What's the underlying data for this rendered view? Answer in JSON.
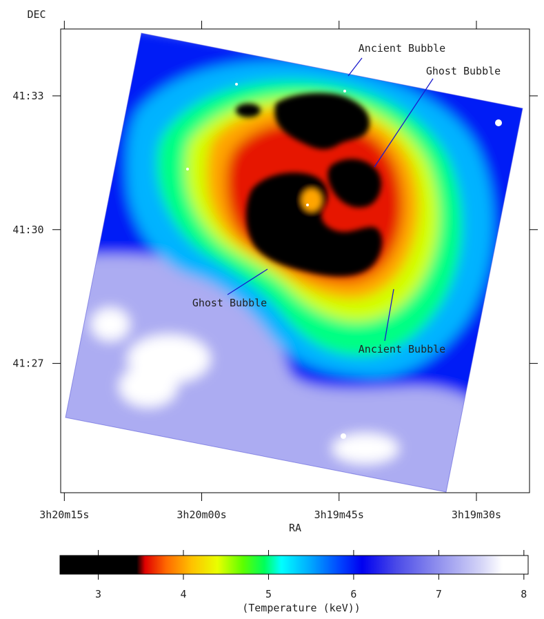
{
  "chart_data": [
    {
      "type": "heatmap",
      "title": "",
      "xlabel": "RA",
      "ylabel": "DEC",
      "x_ticks": [
        {
          "label": "3h20m15s",
          "seconds": 15
        },
        {
          "label": "3h20m00s",
          "seconds": 0
        },
        {
          "label": "3h19m45s",
          "seconds": -15
        },
        {
          "label": "3h19m30s",
          "seconds": -30
        }
      ],
      "xlim": [
        "3h20m15.4s",
        "3h19m24.2s"
      ],
      "y_ticks": [
        {
          "label": "41:33",
          "arcmin": 33
        },
        {
          "label": "41:30",
          "arcmin": 30
        },
        {
          "label": "41:27",
          "arcmin": 27
        }
      ],
      "ylim": [
        "41:24:06",
        "41:34:30"
      ],
      "map_rotation_deg": -5,
      "annotations": [
        {
          "text": "Ancient Bubble",
          "points_to": "outer cool shell, north"
        },
        {
          "text": "Ghost Bubble",
          "points_to": "inner cavity, north-west arc"
        },
        {
          "text": "Ghost Bubble",
          "points_to": "inner cavity, south-east edge"
        },
        {
          "text": "Ancient Bubble",
          "points_to": "outer cool shell, south"
        }
      ],
      "temperature_regions": [
        {
          "region": "core",
          "keV": 3.0
        },
        {
          "region": "inner shell",
          "keV": 4.0
        },
        {
          "region": "middle ring",
          "keV": 5.0
        },
        {
          "region": "outer envelope",
          "keV": 6.0
        },
        {
          "region": "south-east edge",
          "keV": 7.2
        },
        {
          "region": "south-east hot spots",
          "keV": 8.0
        }
      ]
    },
    {
      "type": "colorbar",
      "xlabel": "(Temperature (keV))",
      "range": [
        2.55,
        8.05
      ],
      "ticks": [
        3,
        4,
        5,
        6,
        7,
        8
      ],
      "colormap": [
        {
          "value": 2.55,
          "color": "#000000"
        },
        {
          "value": 3.45,
          "color": "#000000"
        },
        {
          "value": 3.55,
          "color": "#e00000"
        },
        {
          "value": 3.8,
          "color": "#ff6a00"
        },
        {
          "value": 4.1,
          "color": "#ffc200"
        },
        {
          "value": 4.4,
          "color": "#e9ff00"
        },
        {
          "value": 4.7,
          "color": "#5cff00"
        },
        {
          "value": 4.95,
          "color": "#00ff5a"
        },
        {
          "value": 5.15,
          "color": "#00ffff"
        },
        {
          "value": 5.5,
          "color": "#00a6ff"
        },
        {
          "value": 5.85,
          "color": "#0041ff"
        },
        {
          "value": 6.1,
          "color": "#0000f0"
        },
        {
          "value": 6.5,
          "color": "#4a4ae8"
        },
        {
          "value": 7.0,
          "color": "#9191ee"
        },
        {
          "value": 7.5,
          "color": "#d5d5f7"
        },
        {
          "value": 7.75,
          "color": "#ffffff"
        },
        {
          "value": 8.05,
          "color": "#ffffff"
        }
      ]
    }
  ]
}
